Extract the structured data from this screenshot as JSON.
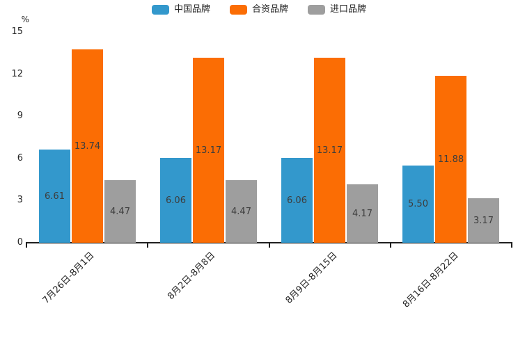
{
  "chart_data": {
    "type": "bar",
    "title": "",
    "unit": "%",
    "categories": [
      "7月26日-8月1日",
      "8月2日-8月8日",
      "8月9日-8月15日",
      "8月16日-8月22日"
    ],
    "series": [
      {
        "name": "中国品牌",
        "color": "#3398cc",
        "values": [
          6.61,
          6.06,
          6.06,
          5.5
        ]
      },
      {
        "name": "合资品牌",
        "color": "#fb6d04",
        "values": [
          13.74,
          13.17,
          13.17,
          11.88
        ]
      },
      {
        "name": "进口品牌",
        "color": "#9e9e9e",
        "values": [
          4.47,
          4.47,
          4.17,
          3.17
        ]
      }
    ],
    "ylim": [
      0,
      15
    ],
    "yticks": [
      0,
      3,
      6,
      9,
      12,
      15
    ],
    "value_label_format": "0.00",
    "legend_position": "top",
    "grid": false,
    "x_label_rotation": 45
  }
}
